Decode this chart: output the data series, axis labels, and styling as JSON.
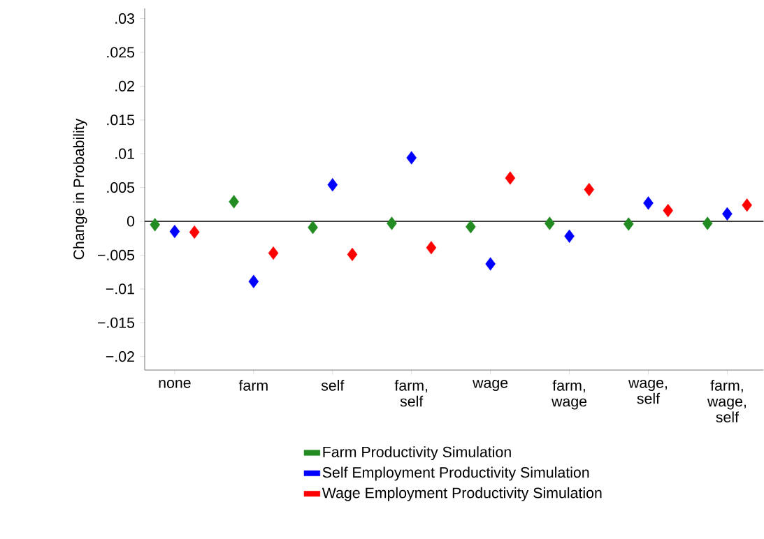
{
  "chart_data": {
    "type": "scatter",
    "ylabel": "Change in Probability",
    "categories": [
      "none",
      "farm",
      "self",
      "farm, self",
      "wage",
      "farm, wage",
      "wage, self",
      "farm, wage, self"
    ],
    "series": [
      {
        "name": "Farm Productivity Simulation",
        "color": "#228b22",
        "values": [
          -0.0005,
          0.0029,
          -0.0009,
          -0.0003,
          -0.0008,
          -0.0003,
          -0.0004,
          -0.0003
        ]
      },
      {
        "name": "Self Employment Productivity Simulation",
        "color": "#0000ff",
        "values": [
          -0.0015,
          -0.0089,
          0.0054,
          0.0094,
          -0.0063,
          -0.0022,
          0.0027,
          0.0011
        ]
      },
      {
        "name": "Wage Employment Productivity Simulation",
        "color": "#ff0000",
        "values": [
          -0.0016,
          -0.0047,
          -0.0049,
          -0.0039,
          0.0064,
          0.0047,
          0.0016,
          0.0024
        ]
      }
    ],
    "ylim": [
      -0.022,
      0.0315
    ],
    "yticks": [
      {
        "value": -0.02,
        "label": "−.02"
      },
      {
        "value": -0.015,
        "label": "−.015"
      },
      {
        "value": -0.01,
        "label": "−.01"
      },
      {
        "value": -0.005,
        "label": "−.005"
      },
      {
        "value": 0,
        "label": "0"
      },
      {
        "value": 0.005,
        "label": ".005"
      },
      {
        "value": 0.01,
        "label": ".01"
      },
      {
        "value": 0.015,
        "label": ".015"
      },
      {
        "value": 0.02,
        "label": ".02"
      },
      {
        "value": 0.025,
        "label": ".025"
      },
      {
        "value": 0.03,
        "label": ".03"
      }
    ],
    "ref_lines": [
      {
        "axis": "y",
        "value": 0,
        "color": "#000000"
      }
    ],
    "marker": "diamond",
    "legend": "bottom",
    "grid": false
  }
}
